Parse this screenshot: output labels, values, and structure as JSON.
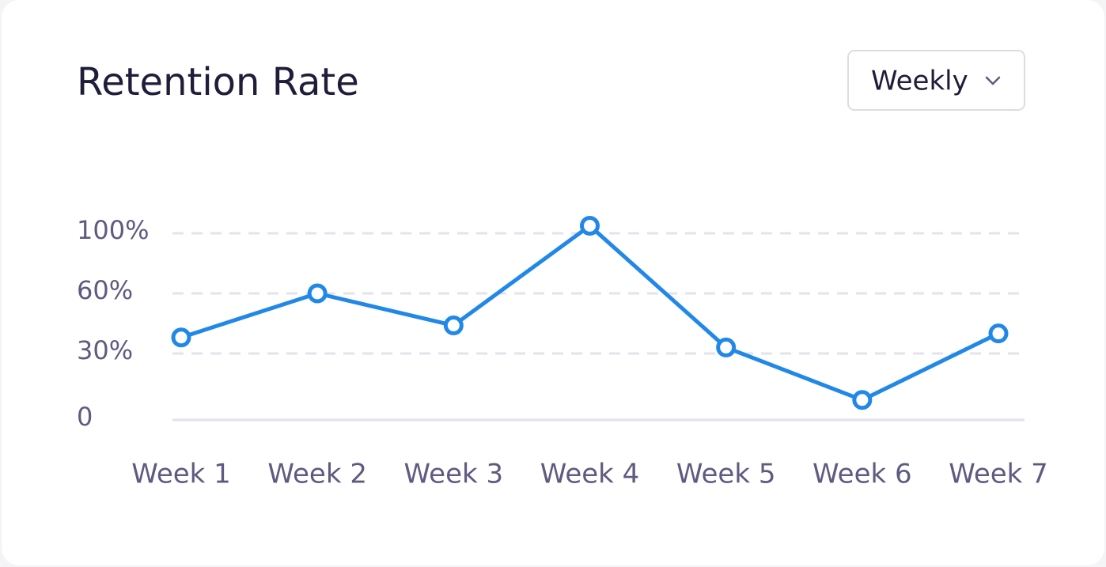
{
  "chart_data": {
    "type": "line",
    "title": "Retention Rate",
    "categories": [
      "Week 1",
      "Week 2",
      "Week 3",
      "Week 4",
      "Week 5",
      "Week 6",
      "Week 7"
    ],
    "values": [
      38,
      60,
      44,
      105,
      33,
      9,
      40
    ],
    "color": "#2188e8",
    "ylim": [
      0,
      100
    ],
    "yticks": [
      0,
      {
        "value": 30,
        "label": "30%"
      },
      {
        "value": 60,
        "label": "60%"
      },
      {
        "value": 100,
        "label": "100%"
      }
    ],
    "grid": true
  },
  "controls": {
    "period": "Weekly"
  }
}
